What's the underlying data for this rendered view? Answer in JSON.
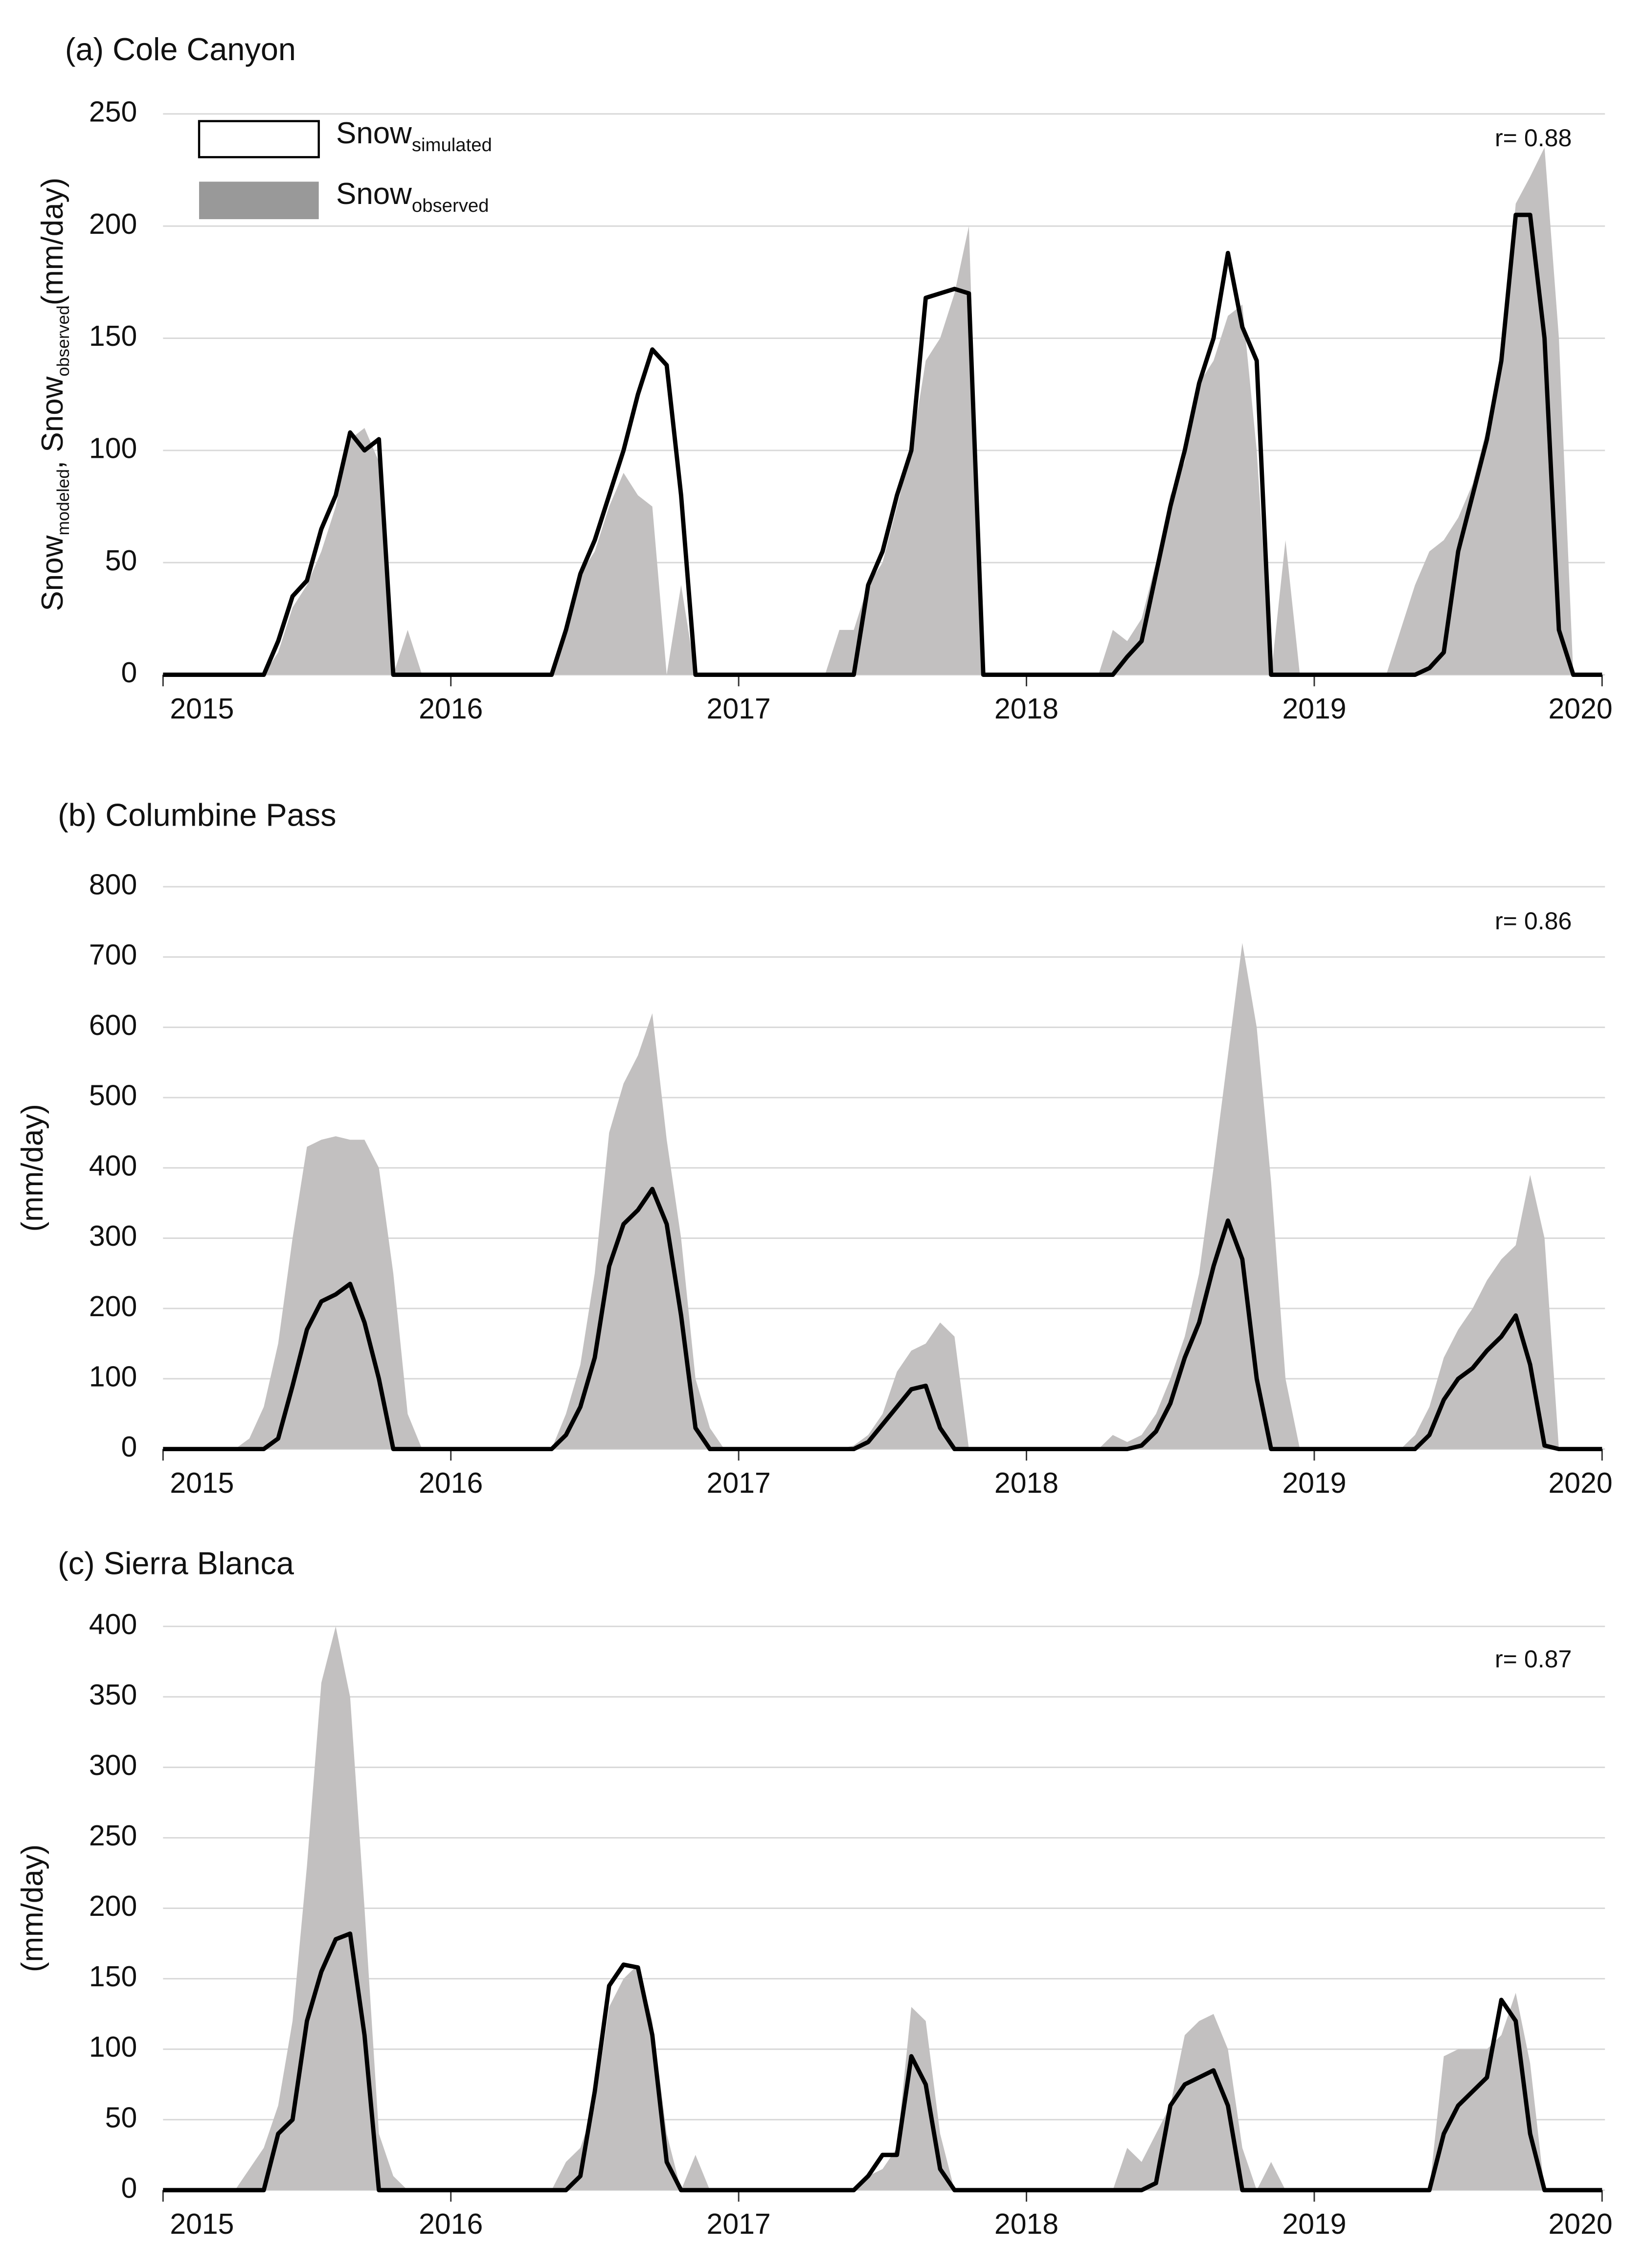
{
  "chart_data": [
    {
      "type": "area_line",
      "title": "(a) Cole Canyon",
      "annotation": "r= 0.88",
      "ylabel_parts": [
        {
          "text": "Snow"
        },
        {
          "text": "modeled",
          "sub": true
        },
        {
          "text": ", Snow"
        },
        {
          "text": "observed",
          "sub": true
        },
        {
          "text": "(mm/day)"
        }
      ],
      "xlim": [
        2015,
        2020
      ],
      "xticks": [
        2015,
        2016,
        2017,
        2018,
        2019,
        2020
      ],
      "ylim": [
        0,
        250
      ],
      "yticks": [
        0,
        50,
        100,
        150,
        200,
        250
      ],
      "grid": true,
      "x": [
        2015,
        2015.05,
        2015.1,
        2015.15,
        2015.2,
        2015.25,
        2015.3,
        2015.35,
        2015.4,
        2015.45,
        2015.5,
        2015.55,
        2015.6,
        2015.65,
        2015.7,
        2015.75,
        2015.8,
        2015.85,
        2015.9,
        2015.95,
        2016,
        2016.05,
        2016.1,
        2016.15,
        2016.2,
        2016.25,
        2016.3,
        2016.35,
        2016.4,
        2016.45,
        2016.5,
        2016.55,
        2016.6,
        2016.65,
        2016.7,
        2016.75,
        2016.8,
        2016.85,
        2016.9,
        2016.95,
        2017,
        2017.05,
        2017.1,
        2017.15,
        2017.2,
        2017.25,
        2017.3,
        2017.35,
        2017.4,
        2017.45,
        2017.5,
        2017.55,
        2017.6,
        2017.65,
        2017.7,
        2017.75,
        2017.8,
        2017.85,
        2017.9,
        2017.95,
        2018,
        2018.05,
        2018.1,
        2018.15,
        2018.2,
        2018.25,
        2018.3,
        2018.35,
        2018.4,
        2018.45,
        2018.5,
        2018.55,
        2018.6,
        2018.65,
        2018.7,
        2018.75,
        2018.8,
        2018.85,
        2018.9,
        2018.95,
        2019,
        2019.05,
        2019.1,
        2019.15,
        2019.2,
        2019.25,
        2019.3,
        2019.35,
        2019.4,
        2019.45,
        2019.5,
        2019.55,
        2019.6,
        2019.65,
        2019.7,
        2019.75,
        2019.8,
        2019.85,
        2019.9,
        2019.95,
        2020
      ],
      "series": [
        {
          "name": "Snow",
          "subscript": "observed",
          "kind": "area",
          "color": "#c2c0c0",
          "legend_color": "#999999",
          "values": [
            0,
            0,
            0,
            0,
            0,
            0,
            0,
            0,
            10,
            30,
            40,
            55,
            75,
            105,
            110,
            95,
            0,
            20,
            0,
            0,
            0,
            0,
            0,
            0,
            0,
            0,
            0,
            0,
            20,
            45,
            55,
            75,
            90,
            80,
            75,
            0,
            40,
            0,
            0,
            0,
            0,
            0,
            0,
            0,
            0,
            0,
            0,
            20,
            20,
            40,
            50,
            75,
            100,
            140,
            150,
            170,
            200,
            0,
            0,
            0,
            0,
            0,
            0,
            0,
            0,
            0,
            20,
            15,
            25,
            50,
            80,
            95,
            130,
            140,
            160,
            165,
            100,
            0,
            60,
            0,
            0,
            0,
            0,
            0,
            0,
            0,
            20,
            40,
            55,
            60,
            70,
            85,
            110,
            140,
            210,
            222,
            235,
            150,
            0,
            0,
            0
          ]
        },
        {
          "name": "Snow",
          "subscript": "simulated",
          "kind": "line",
          "color": "#000000",
          "values": [
            0,
            0,
            0,
            0,
            0,
            0,
            0,
            0,
            15,
            35,
            42,
            65,
            80,
            108,
            100,
            105,
            0,
            0,
            0,
            0,
            0,
            0,
            0,
            0,
            0,
            0,
            0,
            0,
            20,
            45,
            60,
            80,
            100,
            125,
            145,
            138,
            80,
            0,
            0,
            0,
            0,
            0,
            0,
            0,
            0,
            0,
            0,
            0,
            0,
            40,
            55,
            80,
            100,
            168,
            170,
            172,
            170,
            0,
            0,
            0,
            0,
            0,
            0,
            0,
            0,
            0,
            0,
            8,
            15,
            45,
            75,
            100,
            130,
            150,
            188,
            155,
            140,
            0,
            0,
            0,
            0,
            0,
            0,
            0,
            0,
            0,
            0,
            0,
            3,
            10,
            55,
            80,
            105,
            140,
            205,
            205,
            150,
            20,
            0,
            0,
            0
          ]
        }
      ]
    },
    {
      "type": "area_line",
      "title": "(b) Columbine Pass",
      "annotation": "r= 0.86",
      "ylabel_parts": [
        {
          "text": "(mm/day)"
        }
      ],
      "xlim": [
        2015,
        2020
      ],
      "xticks": [
        2015,
        2016,
        2017,
        2018,
        2019,
        2020
      ],
      "ylim": [
        0,
        800
      ],
      "yticks": [
        0,
        100,
        200,
        300,
        400,
        500,
        600,
        700,
        800
      ],
      "grid": true,
      "x": [
        2015,
        2015.05,
        2015.1,
        2015.15,
        2015.2,
        2015.25,
        2015.3,
        2015.35,
        2015.4,
        2015.45,
        2015.5,
        2015.55,
        2015.6,
        2015.65,
        2015.7,
        2015.75,
        2015.8,
        2015.85,
        2015.9,
        2015.95,
        2016,
        2016.05,
        2016.1,
        2016.15,
        2016.2,
        2016.25,
        2016.3,
        2016.35,
        2016.4,
        2016.45,
        2016.5,
        2016.55,
        2016.6,
        2016.65,
        2016.7,
        2016.75,
        2016.8,
        2016.85,
        2016.9,
        2016.95,
        2017,
        2017.05,
        2017.1,
        2017.15,
        2017.2,
        2017.25,
        2017.3,
        2017.35,
        2017.4,
        2017.45,
        2017.5,
        2017.55,
        2017.6,
        2017.65,
        2017.7,
        2017.75,
        2017.8,
        2017.85,
        2017.9,
        2017.95,
        2018,
        2018.05,
        2018.1,
        2018.15,
        2018.2,
        2018.25,
        2018.3,
        2018.35,
        2018.4,
        2018.45,
        2018.5,
        2018.55,
        2018.6,
        2018.65,
        2018.7,
        2018.75,
        2018.8,
        2018.85,
        2018.9,
        2018.95,
        2019,
        2019.05,
        2019.1,
        2019.15,
        2019.2,
        2019.25,
        2019.3,
        2019.35,
        2019.4,
        2019.45,
        2019.5,
        2019.55,
        2019.6,
        2019.65,
        2019.7,
        2019.75,
        2019.8,
        2019.85,
        2019.9,
        2019.95,
        2020
      ],
      "series": [
        {
          "kind": "area",
          "color": "#c2c0c0",
          "values": [
            0,
            0,
            0,
            0,
            0,
            0,
            15,
            60,
            150,
            300,
            430,
            440,
            445,
            440,
            440,
            400,
            250,
            50,
            0,
            0,
            0,
            0,
            0,
            0,
            0,
            0,
            0,
            0,
            50,
            120,
            250,
            450,
            520,
            560,
            620,
            440,
            300,
            100,
            30,
            0,
            0,
            0,
            0,
            0,
            0,
            0,
            0,
            0,
            5,
            20,
            50,
            110,
            140,
            150,
            180,
            160,
            0,
            0,
            0,
            0,
            0,
            0,
            0,
            0,
            0,
            0,
            20,
            10,
            20,
            50,
            100,
            160,
            250,
            400,
            560,
            720,
            600,
            380,
            100,
            0,
            0,
            0,
            0,
            0,
            0,
            0,
            0,
            20,
            60,
            130,
            170,
            200,
            240,
            270,
            290,
            390,
            300,
            0,
            0,
            0,
            0
          ]
        },
        {
          "kind": "line",
          "color": "#000000",
          "values": [
            0,
            0,
            0,
            0,
            0,
            0,
            0,
            0,
            15,
            90,
            170,
            210,
            220,
            235,
            180,
            100,
            0,
            0,
            0,
            0,
            0,
            0,
            0,
            0,
            0,
            0,
            0,
            0,
            20,
            60,
            130,
            260,
            320,
            340,
            370,
            320,
            190,
            30,
            0,
            0,
            0,
            0,
            0,
            0,
            0,
            0,
            0,
            0,
            0,
            10,
            35,
            60,
            85,
            90,
            30,
            0,
            0,
            0,
            0,
            0,
            0,
            0,
            0,
            0,
            0,
            0,
            0,
            0,
            5,
            25,
            65,
            130,
            180,
            260,
            325,
            270,
            100,
            0,
            0,
            0,
            0,
            0,
            0,
            0,
            0,
            0,
            0,
            0,
            20,
            70,
            100,
            115,
            140,
            160,
            190,
            120,
            5,
            0,
            0,
            0,
            0
          ]
        }
      ]
    },
    {
      "type": "area_line",
      "title": "(c) Sierra Blanca",
      "annotation": "r= 0.87",
      "ylabel_parts": [
        {
          "text": "(mm/day)"
        }
      ],
      "xlim": [
        2015,
        2020
      ],
      "xticks": [
        2015,
        2016,
        2017,
        2018,
        2019,
        2020
      ],
      "ylim": [
        0,
        400
      ],
      "yticks": [
        0,
        50,
        100,
        150,
        200,
        250,
        300,
        350,
        400
      ],
      "grid": true,
      "x": [
        2015,
        2015.05,
        2015.1,
        2015.15,
        2015.2,
        2015.25,
        2015.3,
        2015.35,
        2015.4,
        2015.45,
        2015.5,
        2015.55,
        2015.6,
        2015.65,
        2015.7,
        2015.75,
        2015.8,
        2015.85,
        2015.9,
        2015.95,
        2016,
        2016.05,
        2016.1,
        2016.15,
        2016.2,
        2016.25,
        2016.3,
        2016.35,
        2016.4,
        2016.45,
        2016.5,
        2016.55,
        2016.6,
        2016.65,
        2016.7,
        2016.75,
        2016.8,
        2016.85,
        2016.9,
        2016.95,
        2017,
        2017.05,
        2017.1,
        2017.15,
        2017.2,
        2017.25,
        2017.3,
        2017.35,
        2017.4,
        2017.45,
        2017.5,
        2017.55,
        2017.6,
        2017.65,
        2017.7,
        2017.75,
        2017.8,
        2017.85,
        2017.9,
        2017.95,
        2018,
        2018.05,
        2018.1,
        2018.15,
        2018.2,
        2018.25,
        2018.3,
        2018.35,
        2018.4,
        2018.45,
        2018.5,
        2018.55,
        2018.6,
        2018.65,
        2018.7,
        2018.75,
        2018.8,
        2018.85,
        2018.9,
        2018.95,
        2019,
        2019.05,
        2019.1,
        2019.15,
        2019.2,
        2019.25,
        2019.3,
        2019.35,
        2019.4,
        2019.45,
        2019.5,
        2019.55,
        2019.6,
        2019.65,
        2019.7,
        2019.75,
        2019.8,
        2019.85,
        2019.9,
        2019.95,
        2020
      ],
      "series": [
        {
          "kind": "area",
          "color": "#c2c0c0",
          "values": [
            0,
            0,
            0,
            0,
            0,
            0,
            15,
            30,
            60,
            120,
            230,
            360,
            400,
            350,
            200,
            40,
            10,
            0,
            0,
            0,
            0,
            0,
            0,
            0,
            0,
            0,
            0,
            0,
            20,
            30,
            60,
            130,
            150,
            160,
            120,
            40,
            0,
            25,
            0,
            0,
            0,
            0,
            0,
            0,
            0,
            0,
            0,
            0,
            0,
            10,
            15,
            30,
            130,
            120,
            40,
            0,
            0,
            0,
            0,
            0,
            0,
            0,
            0,
            0,
            0,
            0,
            0,
            30,
            20,
            40,
            60,
            110,
            120,
            125,
            100,
            30,
            0,
            20,
            0,
            0,
            0,
            0,
            0,
            0,
            0,
            0,
            0,
            0,
            0,
            95,
            100,
            100,
            100,
            110,
            140,
            90,
            0,
            0,
            0,
            0,
            0
          ]
        },
        {
          "kind": "line",
          "color": "#000000",
          "values": [
            0,
            0,
            0,
            0,
            0,
            0,
            0,
            0,
            40,
            50,
            120,
            155,
            178,
            182,
            110,
            0,
            0,
            0,
            0,
            0,
            0,
            0,
            0,
            0,
            0,
            0,
            0,
            0,
            0,
            10,
            70,
            145,
            160,
            158,
            110,
            20,
            0,
            0,
            0,
            0,
            0,
            0,
            0,
            0,
            0,
            0,
            0,
            0,
            0,
            10,
            25,
            25,
            95,
            75,
            15,
            0,
            0,
            0,
            0,
            0,
            0,
            0,
            0,
            0,
            0,
            0,
            0,
            0,
            0,
            5,
            60,
            75,
            80,
            85,
            60,
            0,
            0,
            0,
            0,
            0,
            0,
            0,
            0,
            0,
            0,
            0,
            0,
            0,
            0,
            40,
            60,
            70,
            80,
            135,
            120,
            40,
            0,
            0,
            0,
            0,
            0
          ]
        }
      ]
    }
  ]
}
